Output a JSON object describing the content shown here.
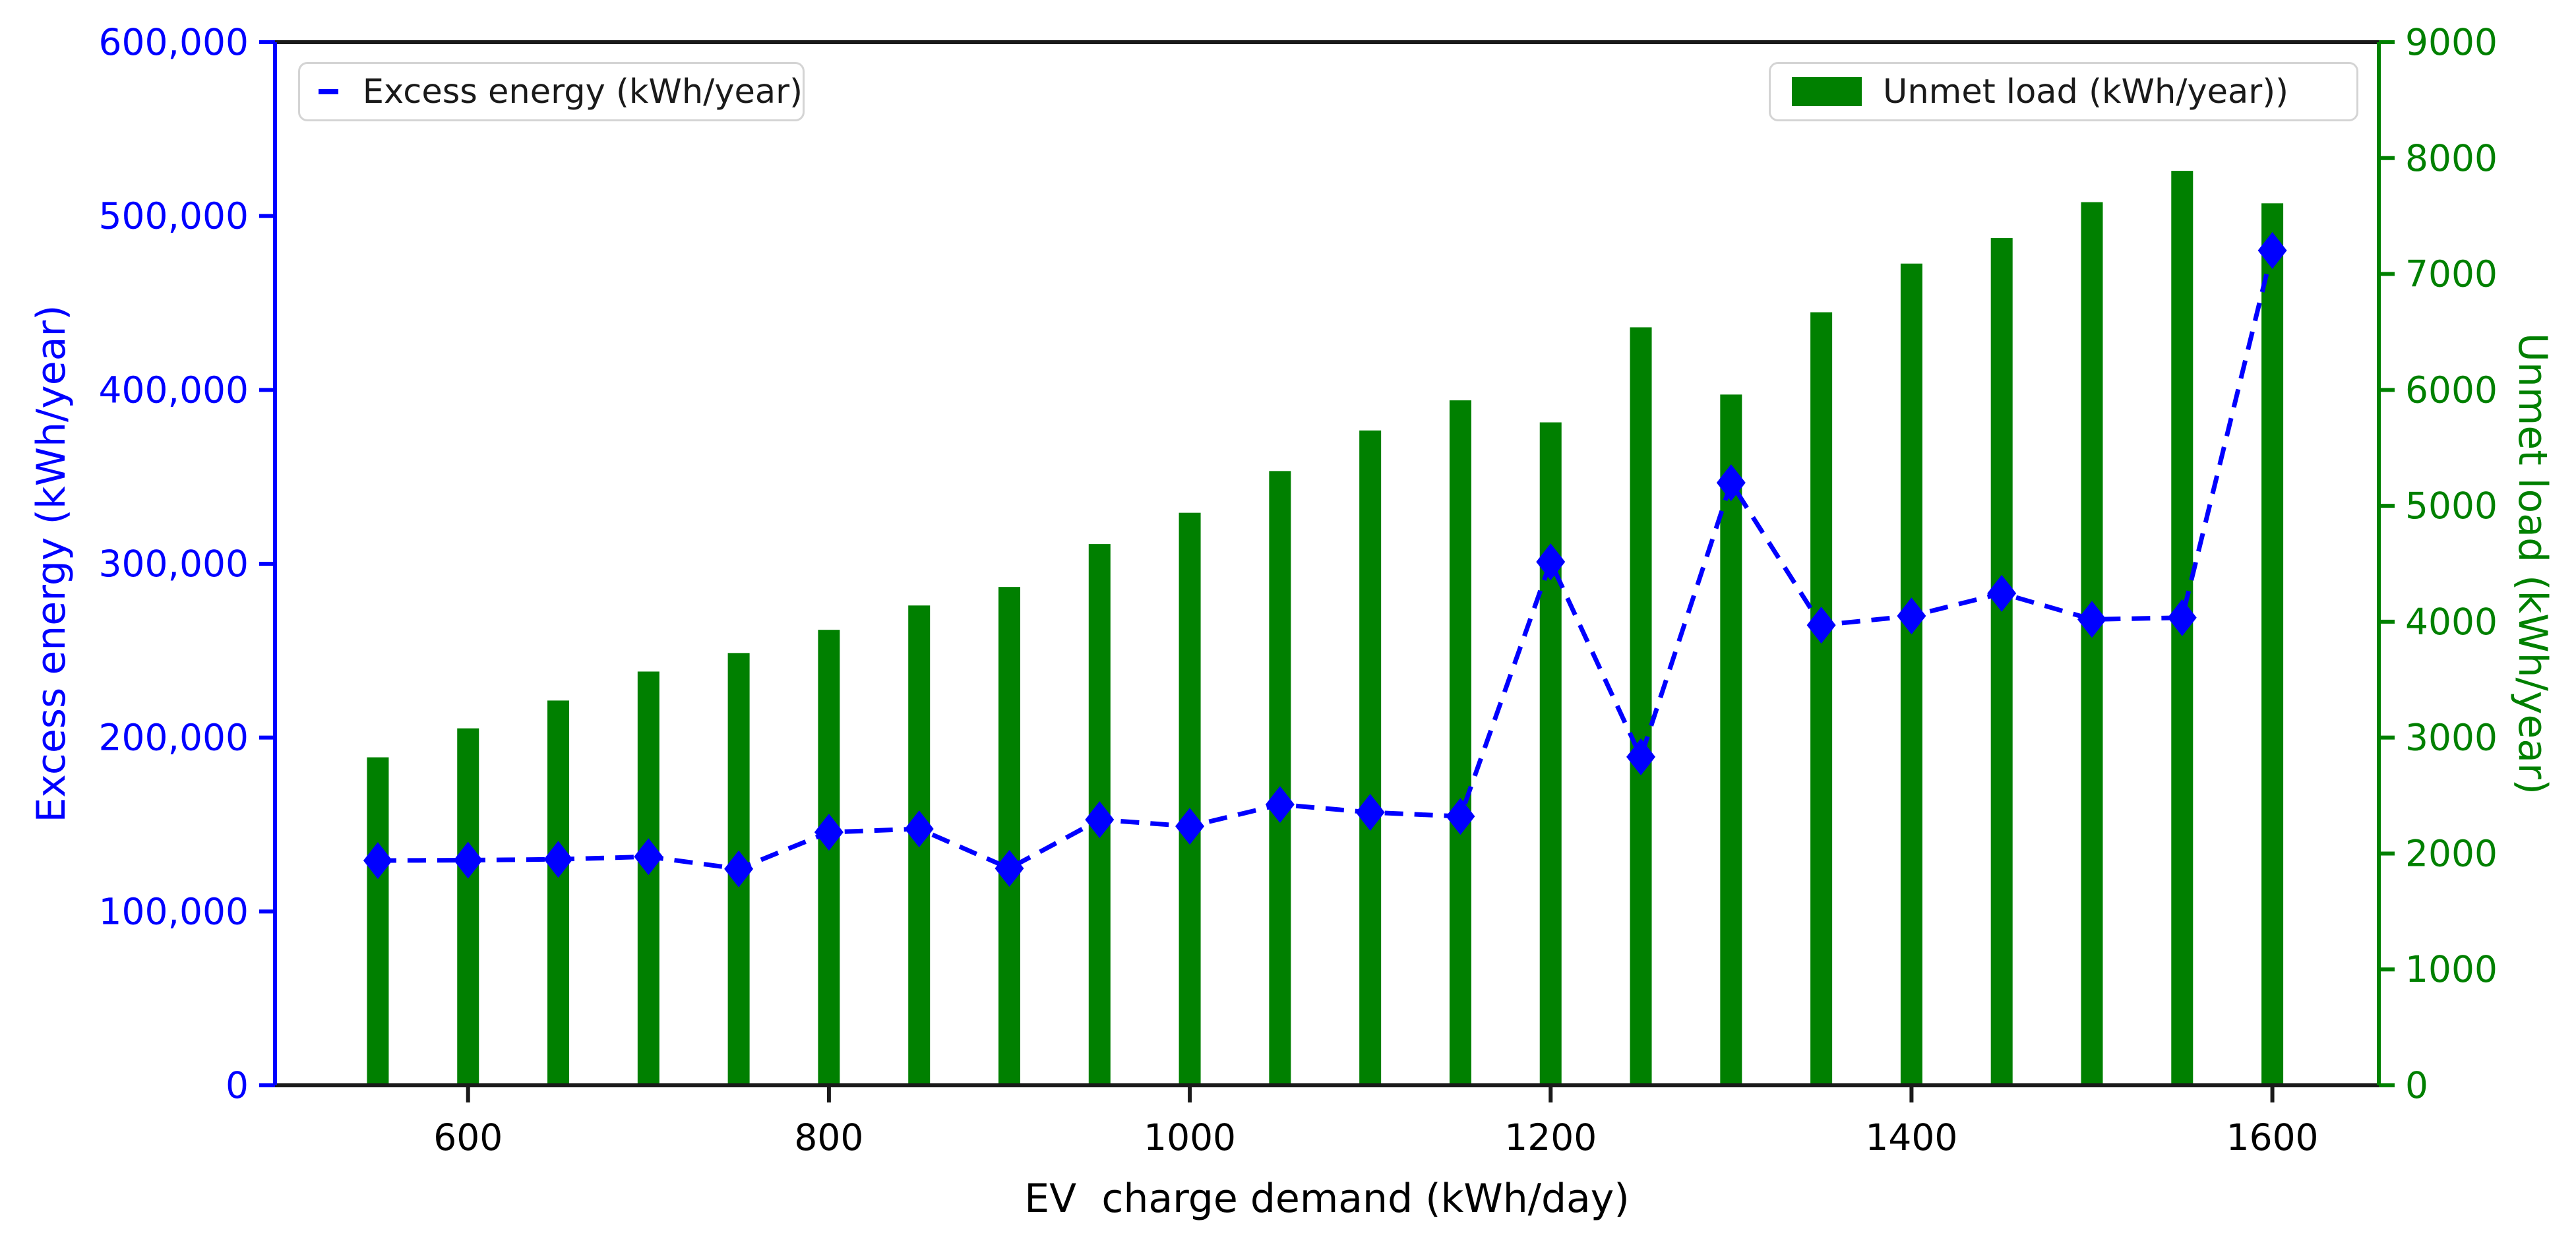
{
  "chart_data": {
    "type": "bar",
    "x": [
      550,
      600,
      650,
      700,
      750,
      800,
      850,
      900,
      950,
      1000,
      1050,
      1100,
      1150,
      1200,
      1250,
      1300,
      1350,
      1400,
      1450,
      1500,
      1550,
      1600
    ],
    "series": [
      {
        "name": "Excess energy (kWh/year)",
        "type": "line",
        "axis": "left",
        "color": "#0000ff",
        "marker": "diamond",
        "linestyle": "dashed",
        "values": [
          129300,
          129500,
          130000,
          131500,
          124500,
          145600,
          147500,
          124800,
          152800,
          149000,
          161500,
          157000,
          154700,
          301100,
          188900,
          346600,
          264700,
          270000,
          283000,
          268000,
          269000,
          480200
        ]
      },
      {
        "name": "Unmet load (kWh/year))",
        "type": "bar",
        "axis": "right",
        "color": "#008000",
        "values": [
          2830,
          3080,
          3320,
          3570,
          3730,
          3930,
          4140,
          4300,
          4670,
          4940,
          5300,
          5650,
          5910,
          5720,
          6540,
          5960,
          6670,
          7090,
          7310,
          7620,
          7890,
          7610
        ]
      }
    ],
    "title": "",
    "xlabel": "EV  charge demand (kWh/day)",
    "ylabel_left": "Excess energy (kWh/year)",
    "ylabel_right": "Unmet load (kWh/year)",
    "xlim": [
      493,
      1659
    ],
    "ylim_left": [
      0,
      600000
    ],
    "ylim_right": [
      0,
      9000
    ],
    "grid": false,
    "legend_left_label": "Excess energy (kWh/year)",
    "legend_right_label": "Unmet load (kWh/year))",
    "xticks": [
      {
        "v": 600,
        "label": "600"
      },
      {
        "v": 800,
        "label": "800"
      },
      {
        "v": 1000,
        "label": "1000"
      },
      {
        "v": 1200,
        "label": "1200"
      },
      {
        "v": 1400,
        "label": "1400"
      },
      {
        "v": 1600,
        "label": "1600"
      }
    ],
    "yticks_left": [
      {
        "v": 0,
        "label": "0"
      },
      {
        "v": 100000,
        "label": "100,000"
      },
      {
        "v": 200000,
        "label": "200,000"
      },
      {
        "v": 300000,
        "label": "300,000"
      },
      {
        "v": 400000,
        "label": "400,000"
      },
      {
        "v": 500000,
        "label": "500,000"
      },
      {
        "v": 600000,
        "label": "600,000"
      }
    ],
    "yticks_right": [
      {
        "v": 0,
        "label": "0"
      },
      {
        "v": 1000,
        "label": "1000"
      },
      {
        "v": 2000,
        "label": "2000"
      },
      {
        "v": 3000,
        "label": "3000"
      },
      {
        "v": 4000,
        "label": "4000"
      },
      {
        "v": 5000,
        "label": "5000"
      },
      {
        "v": 6000,
        "label": "6000"
      },
      {
        "v": 7000,
        "label": "7000"
      },
      {
        "v": 8000,
        "label": "8000"
      },
      {
        "v": 9000,
        "label": "9000"
      }
    ],
    "colors": {
      "excess_blue": "#0000ff",
      "unmet_green": "#008000",
      "spine_black": "#1a1a1a",
      "tick_text_black": "#000000"
    }
  }
}
